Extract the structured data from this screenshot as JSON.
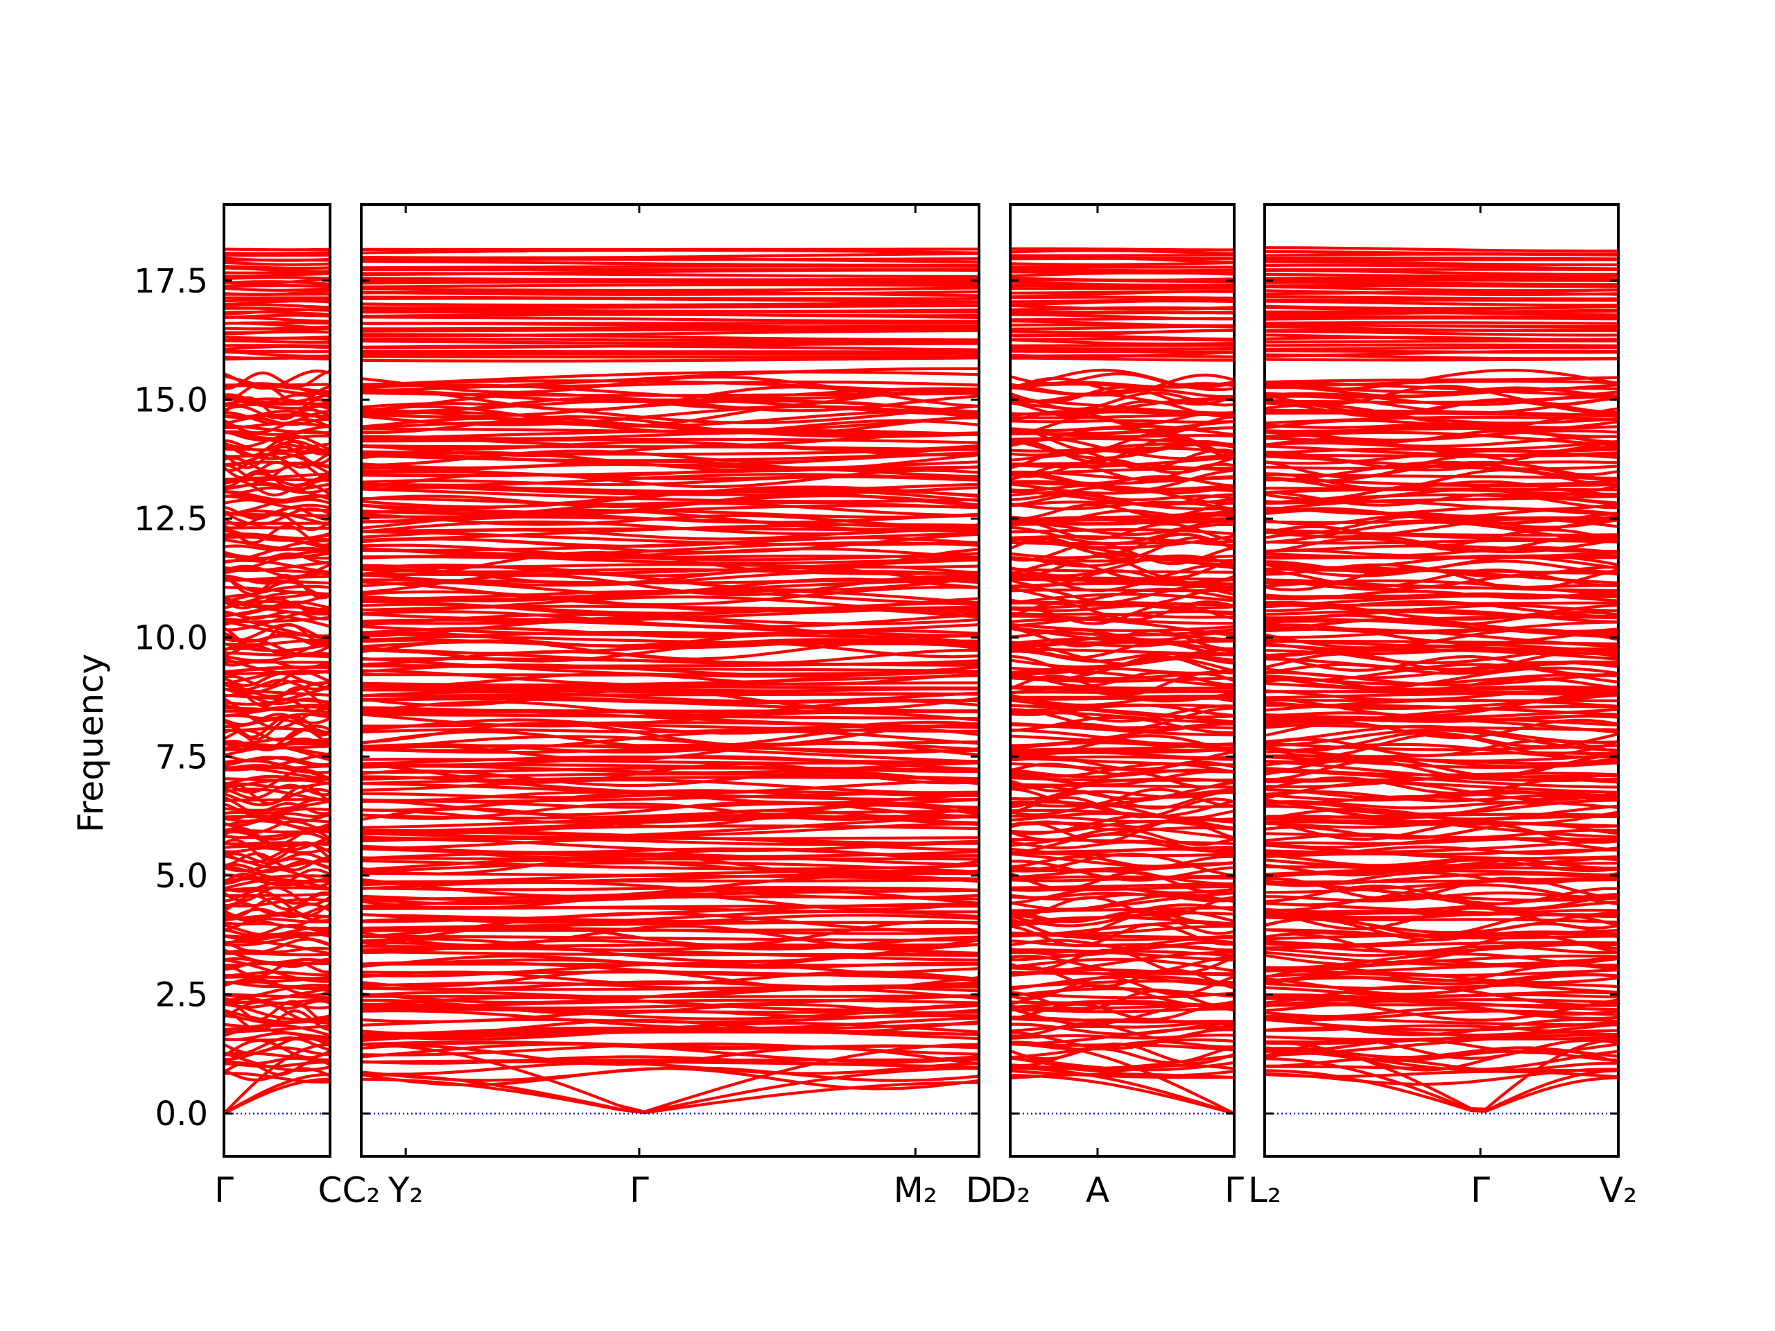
{
  "chart_data": {
    "type": "line",
    "title": "",
    "xlabel": "",
    "ylabel": "Frequency",
    "ylim": [
      -0.9,
      19.1
    ],
    "yticks": [
      0.0,
      2.5,
      5.0,
      7.5,
      10.0,
      12.5,
      15.0,
      17.5
    ],
    "ytick_labels": [
      "0.0",
      "2.5",
      "5.0",
      "7.5",
      "10.0",
      "12.5",
      "15.0",
      "17.5"
    ],
    "grid": false,
    "legend": "none",
    "line_color": "#ff0000",
    "zero_line_color": "#0000aa",
    "panels": [
      {
        "segments": [
          [
            "Γ",
            "C"
          ]
        ],
        "ticks": [
          {
            "pos": 0.0,
            "label": "Γ"
          },
          {
            "pos": 1.0,
            "label": "C"
          }
        ],
        "acoustic": [
          {
            "start": 0.0,
            "end": 0.72
          },
          {
            "start": 0.0,
            "end": 0.82
          },
          {
            "start": 0.0,
            "end": 1.45
          }
        ]
      },
      {
        "segments": [
          [
            "C₂",
            "Y₂"
          ],
          [
            "Y₂",
            "Γ"
          ],
          [
            "Γ",
            "M₂"
          ],
          [
            "M₂",
            "D"
          ]
        ],
        "ticks": [
          {
            "pos": 0.0,
            "label": "C₂"
          },
          {
            "pos": 0.072,
            "label": "Y₂"
          },
          {
            "pos": 0.45,
            "label": "Γ"
          },
          {
            "pos": 0.897,
            "label": "M₂"
          },
          {
            "pos": 1.0,
            "label": "D"
          }
        ],
        "acoustic": [
          {
            "start": 0.72,
            "gamma": 0.45,
            "end": 0.65
          },
          {
            "start": 0.82,
            "gamma": 0.45,
            "end": 0.95
          },
          {
            "start": 1.45,
            "gamma": 0.45,
            "end": 1.45
          }
        ]
      },
      {
        "segments": [
          [
            "D₂",
            "A"
          ],
          [
            "A",
            "Γ"
          ]
        ],
        "ticks": [
          {
            "pos": 0.0,
            "label": "D₂"
          },
          {
            "pos": 0.39,
            "label": "A"
          },
          {
            "pos": 1.0,
            "label": "Γ"
          }
        ],
        "acoustic": [
          {
            "start": 0.8,
            "end": 0.0
          },
          {
            "start": 0.95,
            "end": 0.0
          },
          {
            "start": 1.5,
            "end": 0.0
          }
        ]
      },
      {
        "segments": [
          [
            "L₂",
            "Γ"
          ],
          [
            "Γ",
            "V₂"
          ]
        ],
        "ticks": [
          {
            "pos": 0.0,
            "label": "L₂"
          },
          {
            "pos": 0.61,
            "label": "Γ"
          },
          {
            "pos": 1.0,
            "label": "V₂"
          }
        ],
        "acoustic": [
          {
            "start": 0.9,
            "gamma": 0.61,
            "end": 0.75
          },
          {
            "start": 1.15,
            "gamma": 0.61,
            "end": 0.9
          },
          {
            "start": 1.5,
            "gamma": 0.61,
            "end": 1.55
          }
        ]
      }
    ],
    "band_count": 260,
    "band_range": [
      0.8,
      15.45
    ],
    "upper_band_count": 40,
    "upper_band_range": [
      15.85,
      18.15
    ]
  }
}
